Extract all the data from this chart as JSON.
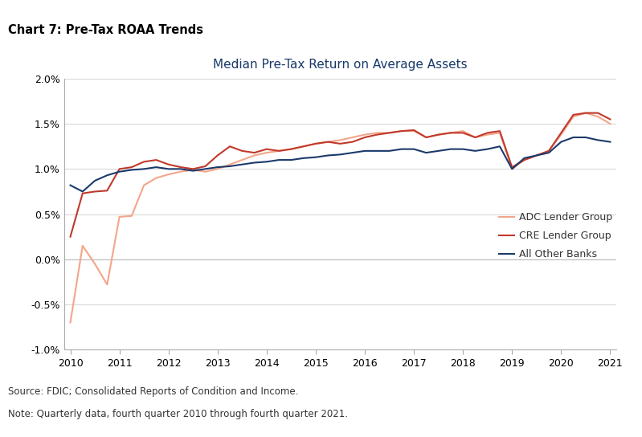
{
  "title": "Chart 7: Pre-Tax ROAA Trends",
  "subtitle": "Median Pre-Tax Return on Average Assets",
  "source": "Source: FDIC; Consolidated Reports of Condition and Income.",
  "note": "Note: Quarterly data, fourth quarter 2010 through fourth quarter 2021.",
  "ylim": [
    -1.0,
    2.0
  ],
  "yticks": [
    -1.0,
    -0.5,
    0.0,
    0.5,
    1.0,
    1.5,
    2.0
  ],
  "xticks": [
    0,
    4,
    8,
    12,
    16,
    20,
    24,
    28,
    32,
    36,
    40,
    44
  ],
  "xtick_labels": [
    "2010",
    "2011",
    "2012",
    "2013",
    "2014",
    "2015",
    "2016",
    "2017",
    "2018",
    "2019",
    "2020",
    "2021"
  ],
  "legend_labels": [
    "ADC Lender Group",
    "CRE Lender Group",
    "All Other Banks"
  ],
  "adc_color": "#f4a58a",
  "cre_color": "#c0392b",
  "other_color": "#1a3a6b",
  "title_color": "#000000",
  "subtitle_color": "#1a3a6b",
  "adc_data": [
    -0.7,
    0.15,
    -0.05,
    -0.28,
    0.47,
    0.48,
    0.82,
    0.9,
    0.94,
    0.97,
    0.99,
    0.97,
    1.0,
    1.05,
    1.1,
    1.15,
    1.18,
    1.2,
    1.22,
    1.25,
    1.28,
    1.3,
    1.32,
    1.35,
    1.38,
    1.4,
    1.4,
    1.42,
    1.42,
    1.35,
    1.38,
    1.4,
    1.42,
    1.35,
    1.38,
    1.4,
    1.0,
    1.1,
    1.15,
    1.2,
    1.38,
    1.58,
    1.62,
    1.58,
    1.5
  ],
  "cre_data": [
    0.25,
    0.73,
    0.75,
    0.76,
    1.0,
    1.02,
    1.08,
    1.1,
    1.05,
    1.02,
    1.0,
    1.03,
    1.15,
    1.25,
    1.2,
    1.18,
    1.22,
    1.2,
    1.22,
    1.25,
    1.28,
    1.3,
    1.28,
    1.3,
    1.35,
    1.38,
    1.4,
    1.42,
    1.43,
    1.35,
    1.38,
    1.4,
    1.4,
    1.35,
    1.4,
    1.42,
    1.02,
    1.1,
    1.15,
    1.2,
    1.4,
    1.6,
    1.62,
    1.62,
    1.55
  ],
  "other_data": [
    0.82,
    0.75,
    0.87,
    0.93,
    0.97,
    0.99,
    1.0,
    1.02,
    1.0,
    1.0,
    0.98,
    1.0,
    1.02,
    1.03,
    1.05,
    1.07,
    1.08,
    1.1,
    1.1,
    1.12,
    1.13,
    1.15,
    1.16,
    1.18,
    1.2,
    1.2,
    1.2,
    1.22,
    1.22,
    1.18,
    1.2,
    1.22,
    1.22,
    1.2,
    1.22,
    1.25,
    1.0,
    1.12,
    1.15,
    1.18,
    1.3,
    1.35,
    1.35,
    1.32,
    1.3
  ]
}
